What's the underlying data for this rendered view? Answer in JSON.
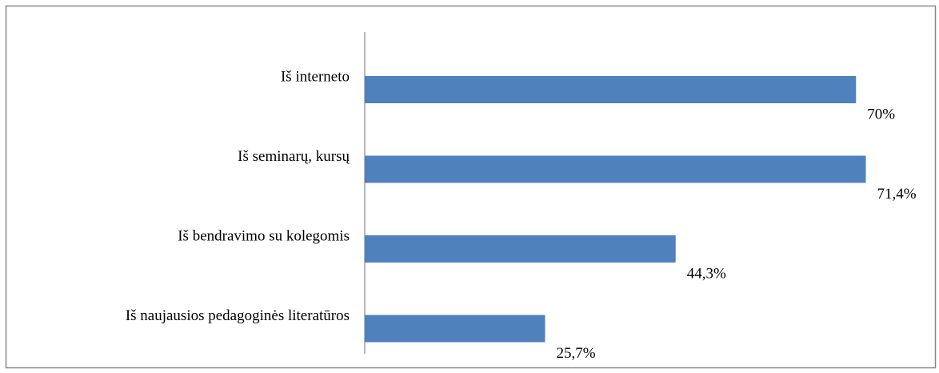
{
  "chart_data": {
    "type": "barh",
    "categories": [
      "Iš interneto",
      "Iš seminarų, kursų",
      "Iš bendravimo su kolegomis",
      "Iš naujausios pedagoginės literatūros"
    ],
    "values": [
      70,
      71.4,
      44.3,
      25.7
    ],
    "value_labels": [
      "70%",
      "71,4%",
      "44,3%",
      "25,7%"
    ],
    "color": "#4f81bd",
    "xlim": [
      0,
      80
    ]
  }
}
